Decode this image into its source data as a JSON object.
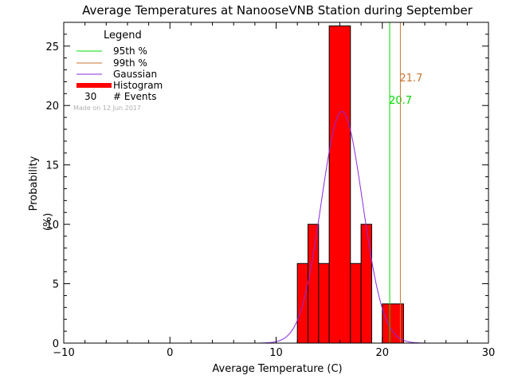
{
  "chart_data": {
    "type": "bar",
    "title": "Average Temperatures at NanooseVNB Station during September",
    "xlabel": "Average Temperature (C)",
    "ylabel_line1": "Probability",
    "ylabel_line2": "(%)",
    "xlim": [
      -10,
      30
    ],
    "ylim": [
      0,
      27
    ],
    "x_ticks": [
      -10,
      0,
      10,
      20,
      30
    ],
    "y_ticks": [
      0,
      5,
      10,
      15,
      20,
      25
    ],
    "histogram": {
      "bin_width": 1,
      "bins": [
        {
          "x0": 12,
          "x1": 13,
          "value": 6.7
        },
        {
          "x0": 13,
          "x1": 14,
          "value": 10.0
        },
        {
          "x0": 14,
          "x1": 15,
          "value": 6.7
        },
        {
          "x0": 15,
          "x1": 17,
          "value": 26.7
        },
        {
          "x0": 17,
          "x1": 18,
          "value": 6.7
        },
        {
          "x0": 18,
          "x1": 19,
          "value": 10.0
        },
        {
          "x0": 20,
          "x1": 22,
          "value": 3.3
        }
      ],
      "color": "#ff0000"
    },
    "gaussian": {
      "mean": 16.2,
      "sigma": 1.95,
      "peak": 19.5,
      "color": "#8a2be2"
    },
    "percentile_95": {
      "value": 20.7,
      "label": "20.7",
      "color": "#00dd00"
    },
    "percentile_99": {
      "value": 21.7,
      "label": "21.7",
      "color": "#c87533"
    },
    "legend": {
      "title": "Legend",
      "items": [
        {
          "label": "95th %",
          "color": "#00dd00",
          "kind": "line"
        },
        {
          "label": "99th %",
          "color": "#c87533",
          "kind": "line"
        },
        {
          "label": "Gaussian",
          "color": "#8a2be2",
          "kind": "line"
        },
        {
          "label": "Histogram",
          "color": "#ff0000",
          "kind": "thick"
        }
      ],
      "events_count": "30",
      "events_label": "# Events",
      "made_on": "Made on 12 Jun 2017"
    }
  }
}
